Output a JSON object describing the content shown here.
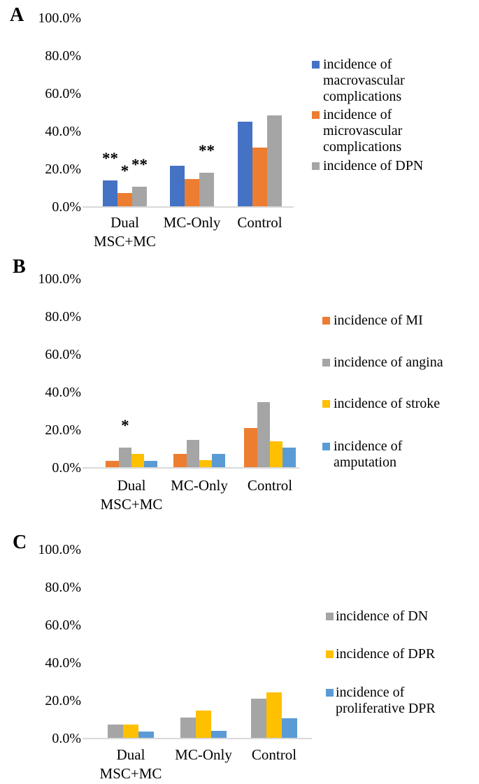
{
  "figure_background": "#ffffff",
  "colors": {
    "blue": "#4472C4",
    "orange": "#ED7D31",
    "gray": "#A5A5A5",
    "yellow": "#FFC000",
    "light_blue": "#5B9BD5",
    "axis_line": "#D9D9D9",
    "text": "#000000"
  },
  "chart_data": [
    {
      "panel": "A",
      "type": "bar",
      "title": "",
      "xlabel": "",
      "ylabel": "",
      "ylim": [
        0,
        100
      ],
      "grid": false,
      "legend_position": "right",
      "ytick_labels": [
        "100.0%",
        "80.0%",
        "60.0%",
        "40.0%",
        "20.0%",
        "0.0%"
      ],
      "categories": [
        "Dual MSC+MC",
        "MC-Only",
        "Control"
      ],
      "category_label_lines": [
        [
          "Dual",
          "MSC+MC"
        ],
        [
          "MC-Only"
        ],
        [
          "Control"
        ]
      ],
      "series": [
        {
          "name": "incidence of macrovascular complications",
          "legend_lines": [
            "incidence of",
            "macrovascular",
            "complications"
          ],
          "color": "#4472C4",
          "values": [
            13.8,
            21.4,
            44.8
          ]
        },
        {
          "name": "incidence of microvascular complications",
          "legend_lines": [
            "incidence of",
            "microvascular",
            "complications"
          ],
          "color": "#ED7D31",
          "values": [
            6.9,
            14.3,
            31.0
          ]
        },
        {
          "name": "incidence of DPN",
          "legend_lines": [
            "incidence of DPN"
          ],
          "color": "#A5A5A5",
          "values": [
            10.3,
            17.9,
            48.3
          ]
        }
      ],
      "annotations": [
        {
          "text": "**",
          "category_index": 0,
          "series_index": 0
        },
        {
          "text": "*",
          "category_index": 0,
          "series_index": 1
        },
        {
          "text": "**",
          "category_index": 0,
          "series_index": 2
        },
        {
          "text": "**",
          "category_index": 1,
          "series_index": 2
        }
      ]
    },
    {
      "panel": "B",
      "type": "bar",
      "title": "",
      "xlabel": "",
      "ylabel": "",
      "ylim": [
        0,
        100
      ],
      "grid": false,
      "legend_position": "right",
      "ytick_labels": [
        "100.0%",
        "80.0%",
        "60.0%",
        "40.0%",
        "20.0%",
        "0.0%"
      ],
      "categories": [
        "Dual MSC+MC",
        "MC-Only",
        "Control"
      ],
      "category_label_lines": [
        [
          "Dual",
          "MSC+MC"
        ],
        [
          "MC-Only"
        ],
        [
          "Control"
        ]
      ],
      "series": [
        {
          "name": "incidence of MI",
          "legend_lines": [
            "incidence of MI"
          ],
          "color": "#ED7D31",
          "values": [
            3.4,
            7.1,
            20.7
          ]
        },
        {
          "name": "incidence of angina",
          "legend_lines": [
            "incidence of angina"
          ],
          "color": "#A5A5A5",
          "values": [
            10.3,
            14.3,
            34.5
          ]
        },
        {
          "name": "incidence of stroke",
          "legend_lines": [
            "incidence of stroke"
          ],
          "color": "#FFC000",
          "values": [
            6.9,
            3.6,
            13.8
          ]
        },
        {
          "name": "incidence of amputation",
          "legend_lines": [
            "incidence of",
            "amputation"
          ],
          "color": "#5B9BD5",
          "values": [
            3.4,
            7.1,
            10.3
          ]
        }
      ],
      "annotations": [
        {
          "text": "*",
          "category_index": 0,
          "series_index": 1
        }
      ]
    },
    {
      "panel": "C",
      "type": "bar",
      "title": "",
      "xlabel": "",
      "ylabel": "",
      "ylim": [
        0,
        100
      ],
      "grid": false,
      "legend_position": "right",
      "ytick_labels": [
        "100.0%",
        "80.0%",
        "60.0%",
        "40.0%",
        "20.0%",
        "0.0%"
      ],
      "categories": [
        "Dual MSC+MC",
        "MC-Only",
        "Control"
      ],
      "category_label_lines": [
        [
          "Dual",
          "MSC+MC"
        ],
        [
          "MC-Only"
        ],
        [
          "Control"
        ]
      ],
      "series": [
        {
          "name": "incidence of DN",
          "legend_lines": [
            "incidence of DN"
          ],
          "color": "#A5A5A5",
          "values": [
            6.9,
            10.7,
            20.7
          ]
        },
        {
          "name": "incidence of DPR",
          "legend_lines": [
            "incidence of DPR"
          ],
          "color": "#FFC000",
          "values": [
            6.9,
            14.3,
            24.1
          ]
        },
        {
          "name": "incidence of proliferative DPR",
          "legend_lines": [
            "incidence of",
            "proliferative DPR"
          ],
          "color": "#5B9BD5",
          "values": [
            3.4,
            3.6,
            10.3
          ]
        }
      ],
      "annotations": []
    }
  ]
}
